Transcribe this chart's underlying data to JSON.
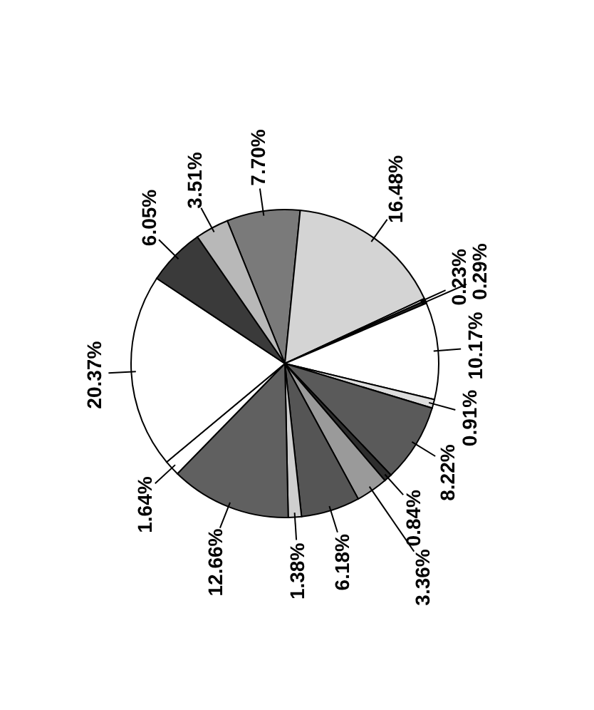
{
  "chart_data": {
    "type": "pie",
    "categories": [
      null,
      null,
      null,
      null,
      null,
      null,
      null,
      null,
      null,
      null,
      null,
      null,
      null,
      null,
      null,
      null
    ],
    "values": [
      7.7,
      16.48,
      0.23,
      0.29,
      10.17,
      0.91,
      8.22,
      0.84,
      3.36,
      6.18,
      1.38,
      12.66,
      1.64,
      20.37,
      6.05,
      3.51
    ],
    "value_labels": [
      "7.70%",
      "16.48%",
      "0.23%",
      "0.29%",
      "10.17%",
      "0.91%",
      "8.22%",
      "0.84%",
      "3.36%",
      "6.18%",
      "1.38%",
      "12.66%",
      "1.64%",
      "20.37%",
      "6.05%",
      "3.51%"
    ],
    "colors": [
      "#7a7a7a",
      "#d4d4d4",
      "#ffffff",
      "#2a2a2a",
      "#ffffff",
      "#dddddd",
      "#5a5a5a",
      "#2e2e2e",
      "#9a9a9a",
      "#555555",
      "#cfcfcf",
      "#606060",
      "#ffffff",
      "#ffffff",
      "#3a3a3a",
      "#b8b8b8"
    ]
  }
}
